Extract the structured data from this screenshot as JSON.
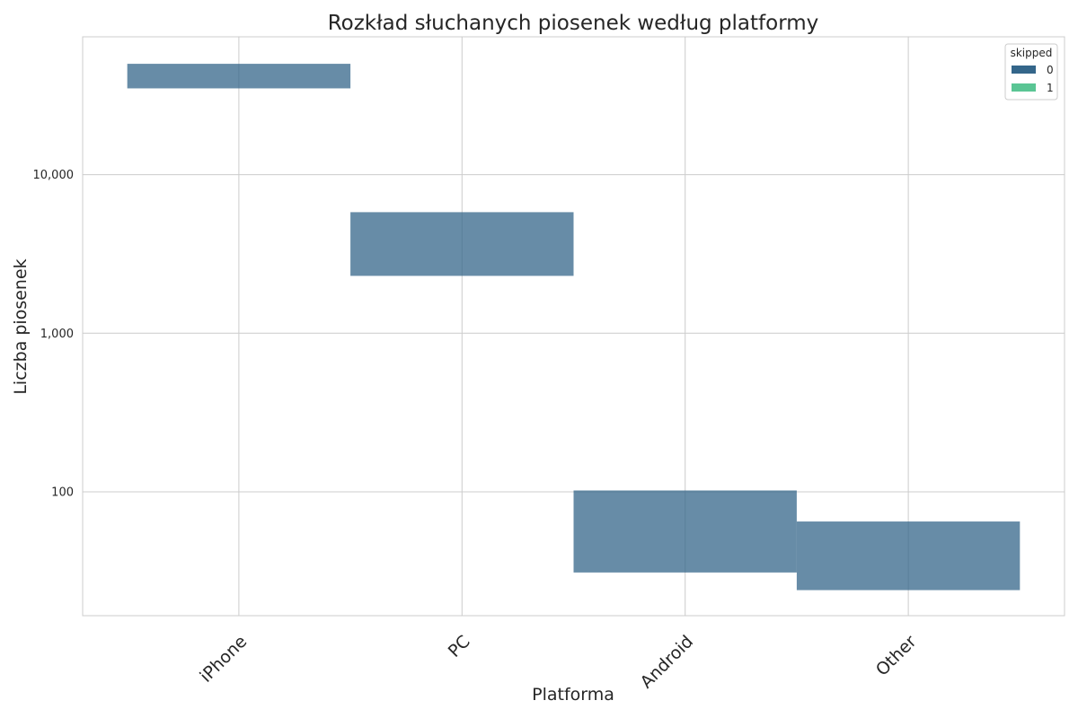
{
  "chart_data": {
    "type": "bar",
    "title": "Rozkład słuchanych piosenek według platformy",
    "xlabel": "Platforma",
    "ylabel": "Liczba piosenek",
    "categories": [
      "iPhone",
      "PC",
      "Android",
      "Other"
    ],
    "y_scale": "log",
    "y_ticks": [
      {
        "value": 100,
        "label": "100"
      },
      {
        "value": 1000,
        "label": "1,000"
      },
      {
        "value": 10000,
        "label": "10,000"
      }
    ],
    "grid": true,
    "legend": {
      "title": "skipped",
      "position": "top-right"
    },
    "series": [
      {
        "name": "0",
        "color": "#34668a",
        "values": [
          [
            35000,
            50000
          ],
          [
            2300,
            5800
          ],
          [
            31,
            102
          ],
          [
            24,
            65
          ]
        ]
      },
      {
        "name": "1",
        "color": "#5ac594",
        "values": [
          null,
          null,
          null,
          null
        ]
      }
    ]
  }
}
